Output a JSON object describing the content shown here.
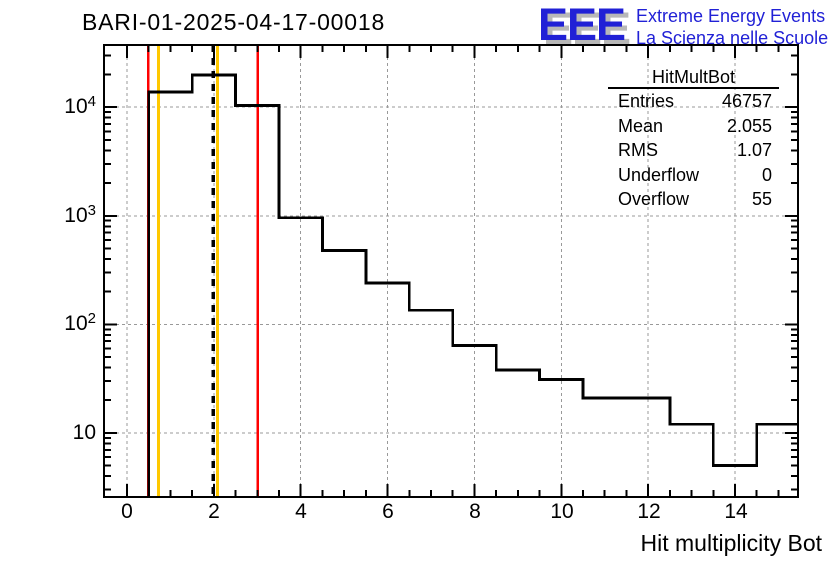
{
  "header": {
    "title": "BARI-01-2025-04-17-00018"
  },
  "logo": {
    "eee": "EEE",
    "line1": "Extreme Energy Events",
    "line2": "La Scienza nelle Scuole",
    "blue": "#2121d6",
    "shadow": "#b8b8b8"
  },
  "stats": {
    "title": "HitMultBot",
    "rows": [
      {
        "label": "Entries",
        "value": "46757"
      },
      {
        "label": "Mean",
        "value": "2.055"
      },
      {
        "label": "RMS",
        "value": "1.07"
      },
      {
        "label": "Underflow",
        "value": "0"
      },
      {
        "label": "Overflow",
        "value": "55"
      }
    ]
  },
  "axis": {
    "x_tick_labels": [
      "0",
      "2",
      "4",
      "6",
      "8",
      "10",
      "12",
      "14"
    ],
    "y_tick_labels": [
      {
        "b": "10",
        "e": ""
      },
      {
        "b": "10",
        "e": "2"
      },
      {
        "b": "10",
        "e": "3"
      },
      {
        "b": "10",
        "e": "4"
      }
    ],
    "x_title": "Hit multiplicity Bot"
  },
  "chart_data": {
    "type": "bar",
    "subtype": "step-histogram",
    "title": "BARI-01-2025-04-17-00018",
    "xlabel": "Hit multiplicity Bot",
    "ylabel": "",
    "y_scale": "log",
    "x_range": [
      -0.53,
      15.45
    ],
    "y_range": [
      2.57,
      37400
    ],
    "x_major_ticks": [
      0,
      2,
      4,
      6,
      8,
      10,
      12,
      14
    ],
    "x_minor_step": 0.5,
    "y_major_ticks": [
      10,
      100,
      1000,
      10000
    ],
    "grid": {
      "show": true,
      "style": "dashed",
      "color": "#999999"
    },
    "frame_color": "#000000",
    "hist_color": "#000000",
    "bins": {
      "centers": [
        1,
        2,
        3,
        4,
        5,
        6,
        7,
        8,
        9,
        10,
        11,
        12,
        13,
        14,
        15
      ],
      "width": 1,
      "counts": [
        13800,
        19800,
        10400,
        960,
        480,
        240,
        135,
        64,
        38,
        31,
        21,
        21,
        12,
        5,
        12
      ]
    },
    "vlines": [
      {
        "name": "red-marker-line-left",
        "x": 0.485,
        "color": "#ff0000",
        "style": "solid",
        "width": 2.4
      },
      {
        "name": "yellow-marker-line-left",
        "x": 0.73,
        "color": "#ffc800",
        "style": "solid",
        "width": 3
      },
      {
        "name": "mean-dashed-line",
        "x": 1.985,
        "color": "#000000",
        "style": "dashed",
        "width": 3.2
      },
      {
        "name": "yellow-marker-line-right",
        "x": 2.08,
        "color": "#ffc800",
        "style": "solid",
        "width": 3
      },
      {
        "name": "red-marker-line-right",
        "x": 3.01,
        "color": "#ff0000",
        "style": "solid",
        "width": 2.4
      }
    ]
  }
}
